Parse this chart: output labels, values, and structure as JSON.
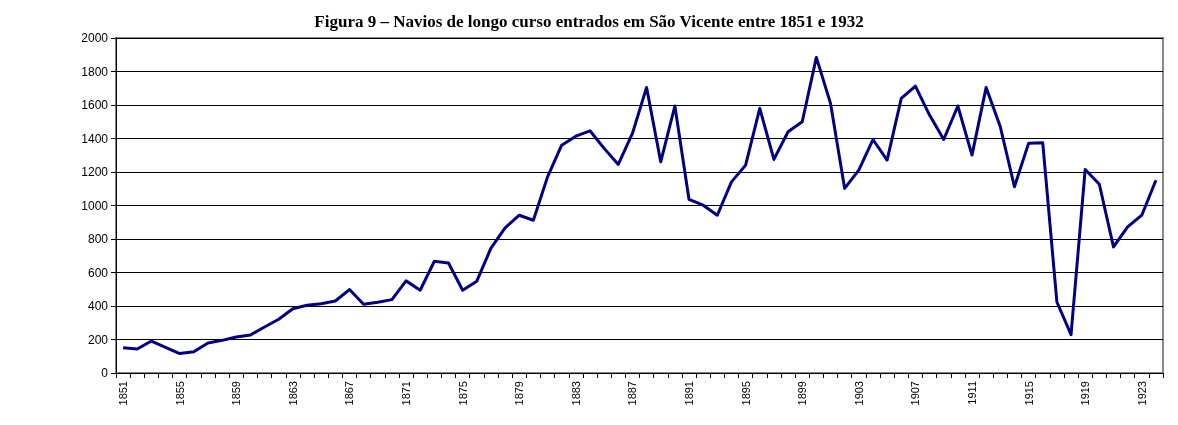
{
  "chart_data": {
    "type": "line",
    "title": "Figura 9 – Navios de longo curso entrados em São Vicente entre 1851 e 1932",
    "categories": [
      "1851",
      null,
      null,
      null,
      "1855",
      null,
      null,
      null,
      "1859",
      null,
      null,
      null,
      "1863",
      null,
      null,
      null,
      "1867",
      null,
      null,
      null,
      "1871",
      null,
      null,
      null,
      "1875",
      null,
      null,
      null,
      "1879",
      null,
      null,
      null,
      "1883",
      null,
      null,
      null,
      "1887",
      null,
      null,
      null,
      "1891",
      null,
      null,
      null,
      "1895",
      null,
      null,
      null,
      "1899",
      null,
      null,
      null,
      "1903",
      null,
      null,
      null,
      "1907",
      null,
      null,
      null,
      "1911",
      null,
      null,
      null,
      "1915",
      null,
      null,
      null,
      "1919",
      null,
      null,
      null,
      "1923",
      null
    ],
    "series": [
      {
        "color": "#000080",
        "values": [
          151,
          143,
          191,
          153,
          116,
          127,
          179,
          195,
          215,
          227,
          275,
          321,
          384,
          404,
          414,
          430,
          498,
          410,
          422,
          438,
          550,
          494,
          667,
          657,
          494,
          548,
          745,
          867,
          942,
          912,
          1171,
          1360,
          1414,
          1446,
          1341,
          1245,
          1430,
          1705,
          1261,
          1594,
          1036,
          1002,
          942,
          1141,
          1241,
          1580,
          1275,
          1440,
          1500,
          1884,
          1610,
          1102,
          1211,
          1394,
          1271,
          1639,
          1713,
          1540,
          1394,
          1594,
          1301,
          1705,
          1470,
          1112,
          1371,
          1374,
          424,
          229,
          1215,
          1127,
          753,
          872,
          942,
          1151
        ]
      }
    ],
    "ylim": [
      0,
      2000
    ],
    "yticks": [
      0,
      200,
      400,
      600,
      800,
      1000,
      1200,
      1400,
      1600,
      1800,
      2000
    ],
    "grid": "y",
    "marker": "none",
    "line_style": "solid"
  }
}
